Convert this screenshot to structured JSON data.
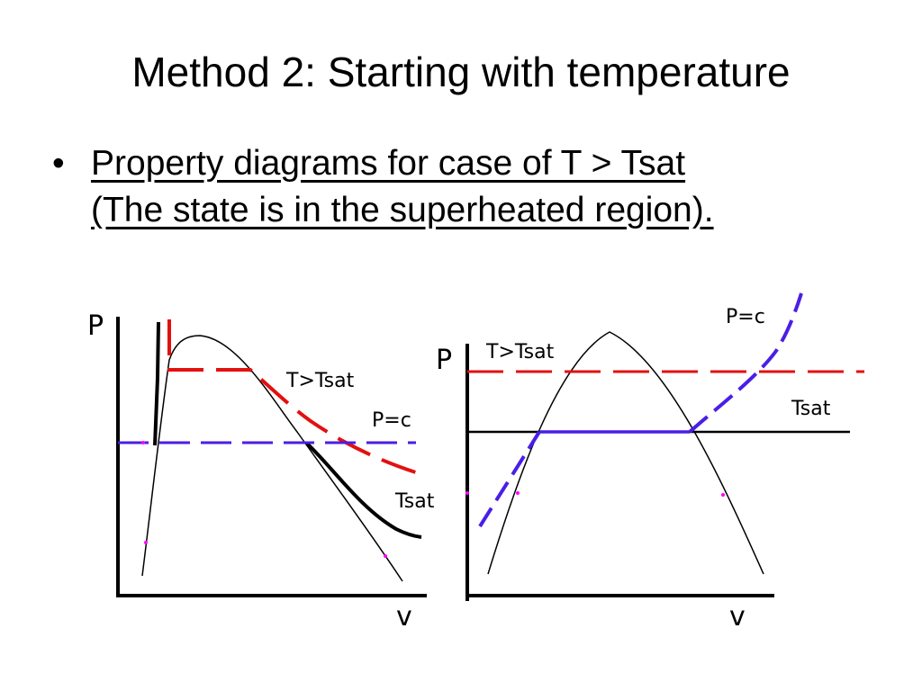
{
  "slide": {
    "title": "Method 2: Starting with temperature",
    "bullet_marker": "•",
    "bullet_line1": "Property diagrams for case of T > Tsat",
    "bullet_line2": "(The state is in the superheated region)."
  },
  "diagram_left": {
    "y_axis_label": "P",
    "x_axis_label": "v",
    "label_t_gt_tsat": "T>Tsat",
    "label_p_const": "P=c",
    "label_tsat": "Tsat"
  },
  "diagram_right": {
    "y_axis_label": "P",
    "x_axis_label": "v",
    "label_t_gt_tsat": "T>Tsat",
    "label_p_const": "P=c",
    "label_tsat": "Tsat"
  },
  "colors": {
    "red_dashed": "#e31010",
    "blue_dashed": "#4a1ee6",
    "blue_solid": "#4a1ee6",
    "black": "#000000",
    "magenta_dot": "#ff00ff"
  }
}
